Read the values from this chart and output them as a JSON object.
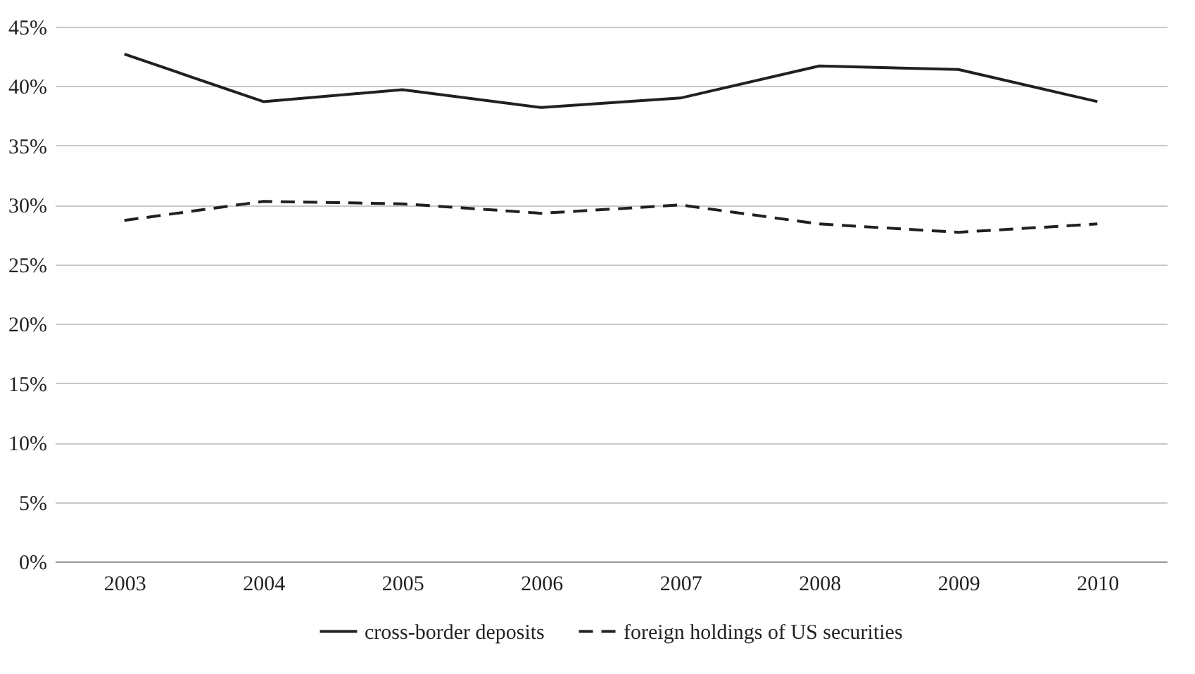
{
  "chart_data": {
    "type": "line",
    "categories": [
      "2003",
      "2004",
      "2005",
      "2006",
      "2007",
      "2008",
      "2009",
      "2010"
    ],
    "series": [
      {
        "name": "cross-border deposits",
        "color": "#231f20",
        "line_style": "solid",
        "values": [
          42.7,
          38.7,
          39.7,
          38.2,
          39.0,
          41.7,
          41.4,
          38.7
        ]
      },
      {
        "name": "foreign holdings of US securities",
        "color": "#231f20",
        "line_style": "dashed",
        "values": [
          28.7,
          30.3,
          30.1,
          29.3,
          30.0,
          28.4,
          27.7,
          28.4
        ]
      }
    ],
    "ylim": [
      0,
      45
    ],
    "yticks": [
      {
        "value": 0,
        "label": "0%"
      },
      {
        "value": 5,
        "label": "5%"
      },
      {
        "value": 10,
        "label": "10%"
      },
      {
        "value": 15,
        "label": "15%"
      },
      {
        "value": 20,
        "label": "20%"
      },
      {
        "value": 25,
        "label": "25%"
      },
      {
        "value": 30,
        "label": "30%"
      },
      {
        "value": 35,
        "label": "35%"
      },
      {
        "value": 40,
        "label": "40%"
      },
      {
        "value": 45,
        "label": "45%"
      }
    ],
    "grid": "y",
    "legend": "bottom",
    "marker": "none"
  }
}
